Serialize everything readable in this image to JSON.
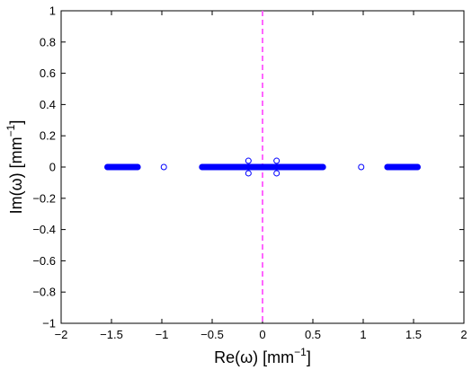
{
  "chart_data": {
    "type": "scatter",
    "title": "",
    "xlabel": "Re(ω) [mm",
    "ylabel": "Im(ω) [mm",
    "label_exponent": "−1",
    "label_suffix": "]",
    "xlim": [
      -2,
      2
    ],
    "ylim": [
      -1,
      1
    ],
    "xticks": [
      -2,
      -1.5,
      -1,
      -0.5,
      0,
      0.5,
      1,
      1.5,
      2
    ],
    "xtick_labels": [
      "−2",
      "−1.5",
      "−1",
      "−0.5",
      "0",
      "0.5",
      "1",
      "1.5",
      "2"
    ],
    "yticks": [
      -1,
      -0.8,
      -0.6,
      -0.4,
      -0.2,
      0,
      0.2,
      0.4,
      0.6,
      0.8,
      1
    ],
    "ytick_labels": [
      "−1",
      "−0.8",
      "−0.6",
      "−0.4",
      "−0.2",
      "0",
      "0.2",
      "0.4",
      "0.6",
      "0.8",
      "1"
    ],
    "grid": false,
    "marker": "open-circle",
    "marker_color": "#0000ff",
    "reference_line": {
      "x": 0,
      "style": "dashed",
      "color": "#ff66ff"
    },
    "series": [
      {
        "clusters": [
          {
            "x_from": -1.54,
            "x_to": -1.24,
            "y": 0
          },
          {
            "x_from": -0.6,
            "x_to": 0.6,
            "y": 0
          },
          {
            "x_from": 1.24,
            "x_to": 1.54,
            "y": 0
          }
        ],
        "points": [
          {
            "x": -0.98,
            "y": 0
          },
          {
            "x": 0.98,
            "y": 0
          },
          {
            "x": -0.14,
            "y": 0.04
          },
          {
            "x": -0.14,
            "y": -0.04
          },
          {
            "x": 0.14,
            "y": 0.04
          },
          {
            "x": 0.14,
            "y": -0.04
          }
        ]
      }
    ]
  }
}
